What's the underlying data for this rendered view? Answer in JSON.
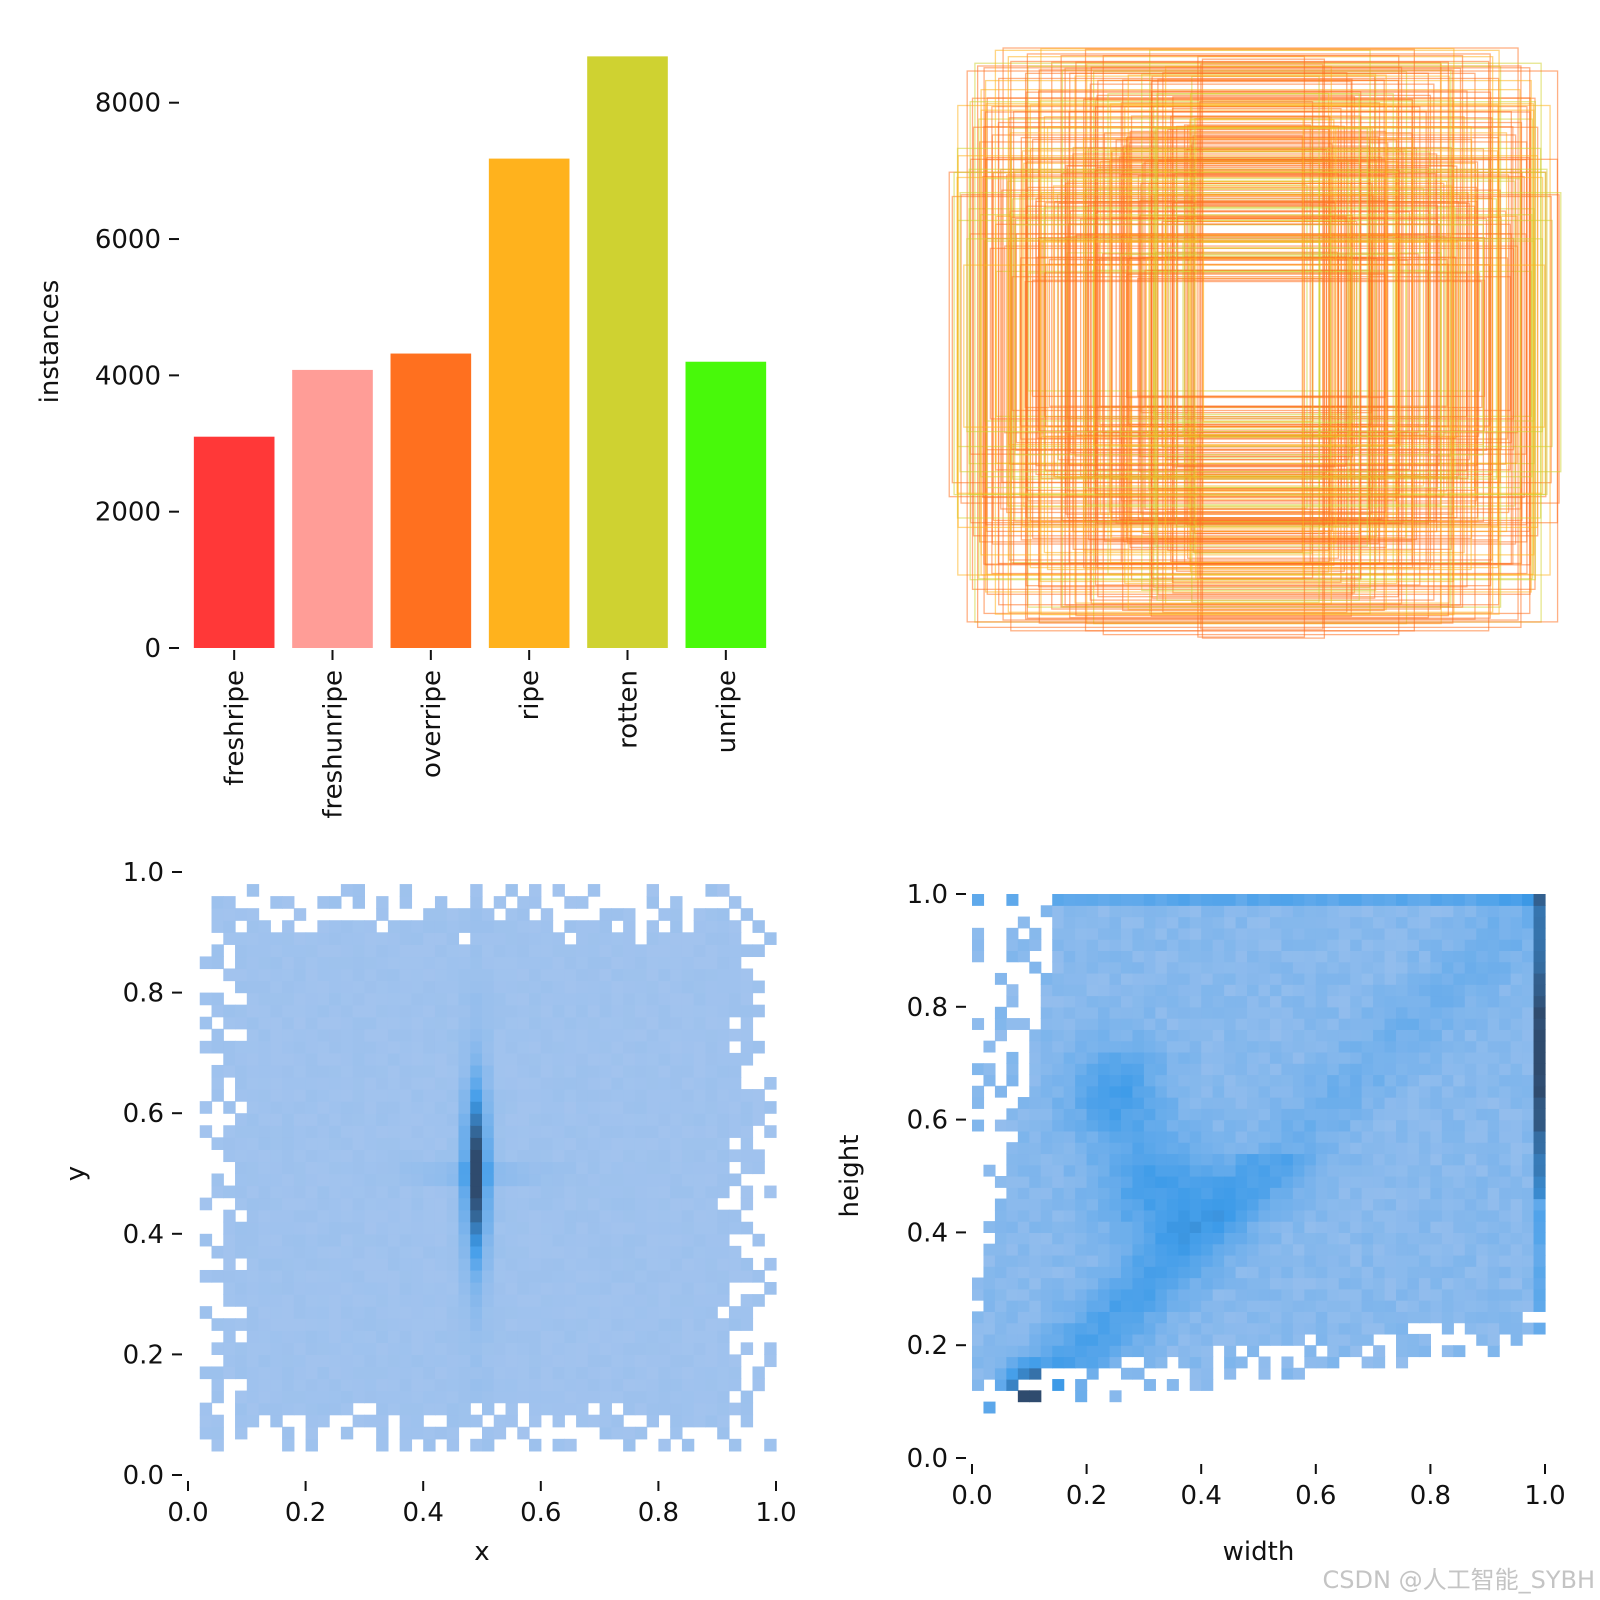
{
  "watermark": "CSDN @人工智能_SYBH",
  "chart_data": [
    {
      "type": "bar",
      "id": "class-instances",
      "categories": [
        "freshripe",
        "freshunripe",
        "overripe",
        "ripe",
        "rotten",
        "unripe"
      ],
      "values": [
        3100,
        4080,
        4320,
        7180,
        8680,
        4200
      ],
      "colors": [
        "#ff3838",
        "#ff9d97",
        "#ff701f",
        "#ffb21d",
        "#cfd231",
        "#48f90a"
      ],
      "xlabel": "",
      "ylabel": "instances",
      "ylim": [
        0,
        8700
      ],
      "yticks": [
        0,
        2000,
        4000,
        6000,
        8000
      ],
      "ytick_labels": [
        "0",
        "2000",
        "4000",
        "6000",
        "8000"
      ],
      "grid": false
    },
    {
      "type": "box-overlay",
      "id": "label-boxes",
      "description_values": "overlapping centered bounding boxes, widths and heights as fractions of the image",
      "colors": [
        "#ff701f",
        "#ffb21d",
        "#cfd231"
      ]
    },
    {
      "type": "heatmap",
      "id": "xy-density",
      "xlabel": "x",
      "ylabel": "y",
      "xlim": [
        0,
        1
      ],
      "ylim": [
        0,
        1
      ],
      "xticks": [
        0.0,
        0.2,
        0.4,
        0.6,
        0.8,
        1.0
      ],
      "xtick_labels": [
        "0.0",
        "0.2",
        "0.4",
        "0.6",
        "0.8",
        "1.0"
      ],
      "yticks": [
        0.0,
        0.2,
        0.4,
        0.6,
        0.8,
        1.0
      ],
      "ytick_labels": [
        "0.0",
        "0.2",
        "0.4",
        "0.6",
        "0.8",
        "1.0"
      ],
      "bins": 50,
      "occupied_x": [
        0.02,
        0.99
      ],
      "occupied_y": [
        0.04,
        0.97
      ],
      "hotspot": {
        "x": 0.49,
        "y": 0.5
      },
      "colors": {
        "low": "#a9c6ee",
        "mid": "#3d9be9",
        "high": "#2f4b6e"
      },
      "grid": false
    },
    {
      "type": "heatmap",
      "id": "wh-density",
      "xlabel": "width",
      "ylabel": "height",
      "xlim": [
        0,
        1
      ],
      "ylim": [
        0,
        1
      ],
      "xticks": [
        0.0,
        0.2,
        0.4,
        0.6,
        0.8,
        1.0
      ],
      "xtick_labels": [
        "0.0",
        "0.2",
        "0.4",
        "0.6",
        "0.8",
        "1.0"
      ],
      "yticks": [
        0.0,
        0.2,
        0.4,
        0.6,
        0.8,
        1.0
      ],
      "ytick_labels": [
        "0.0",
        "0.2",
        "0.4",
        "0.6",
        "0.8",
        "1.0"
      ],
      "bins": 50,
      "hotspots": [
        {
          "x": 0.1,
          "y": 0.11
        },
        {
          "x": 0.99,
          "y": 0.7
        },
        {
          "x": 0.25,
          "y": 0.65
        },
        {
          "x": 0.32,
          "y": 0.48
        }
      ],
      "colors": {
        "low": "#a9c6ee",
        "mid": "#3d9be9",
        "high": "#2f4b6e"
      },
      "grid": false
    }
  ]
}
